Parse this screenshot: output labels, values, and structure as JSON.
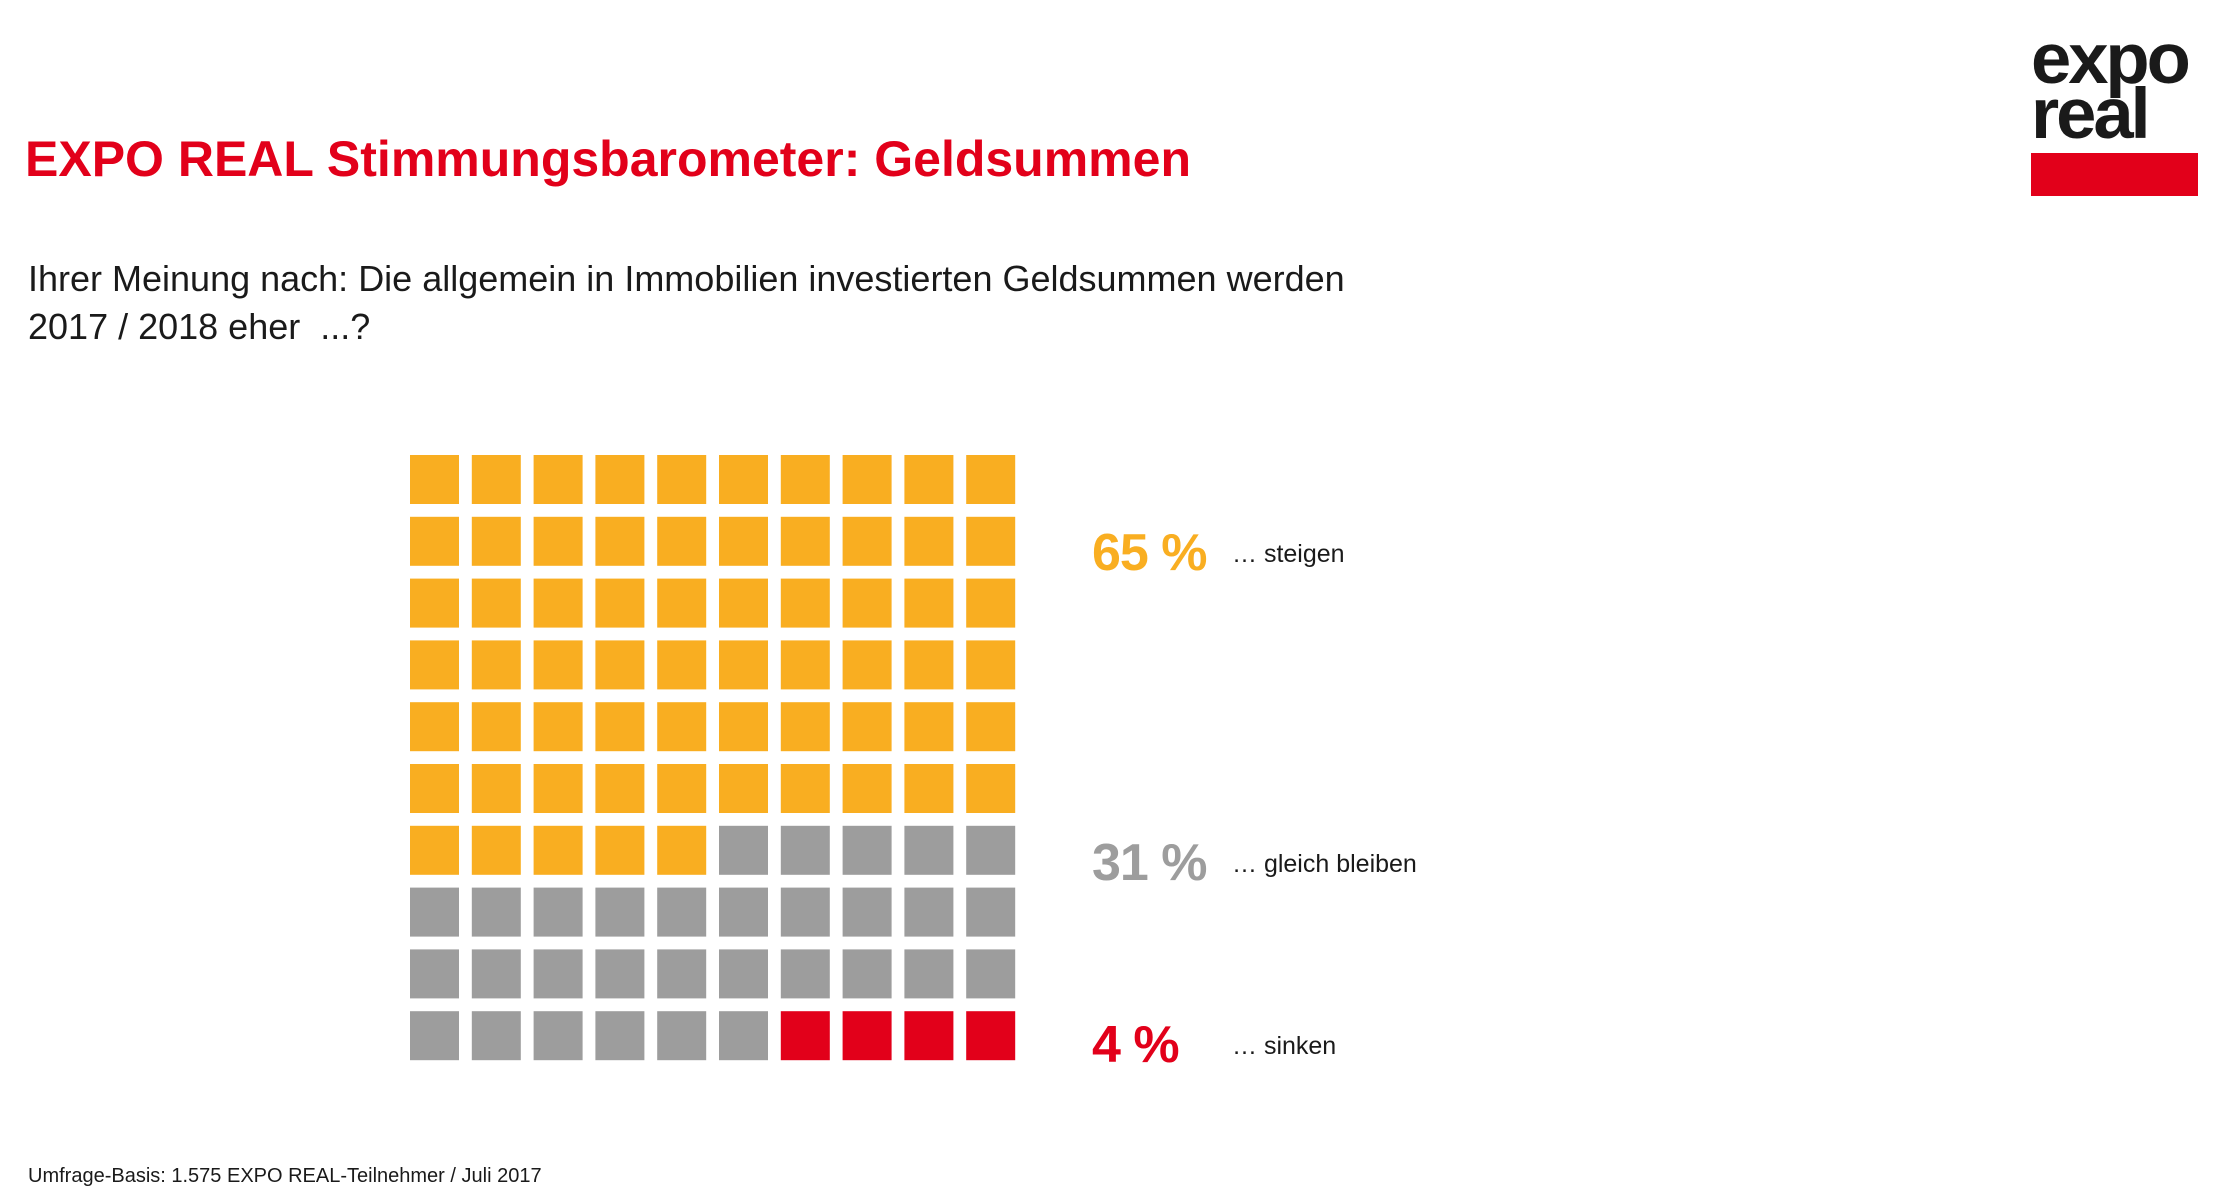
{
  "title": "EXPO REAL Stimmungsbarometer: Geldsummen",
  "question_lines": [
    "Ihrer Meinung nach: Die allgemein in Immobilien investierten Geldsummen werden",
    "2017 / 2018 eher  ...?"
  ],
  "logo": {
    "line1": "expo",
    "line2": "real",
    "bar_color": "#e2001a"
  },
  "chart_data": {
    "type": "waffle",
    "grid_rows": 10,
    "grid_cols": 10,
    "series": [
      {
        "name": "… steigen",
        "value": 65,
        "value_label": "65 %",
        "color": "#f9ae21"
      },
      {
        "name": "… gleich bleiben",
        "value": 31,
        "value_label": "31 %",
        "color": "#9d9d9d"
      },
      {
        "name": "… sinken",
        "value": 4,
        "value_label": "4 %",
        "color": "#e2001a"
      }
    ],
    "legend_placement": "right"
  },
  "source": "Umfrage-Basis: 1.575 EXPO REAL-Teilnehmer / Juli 2017"
}
